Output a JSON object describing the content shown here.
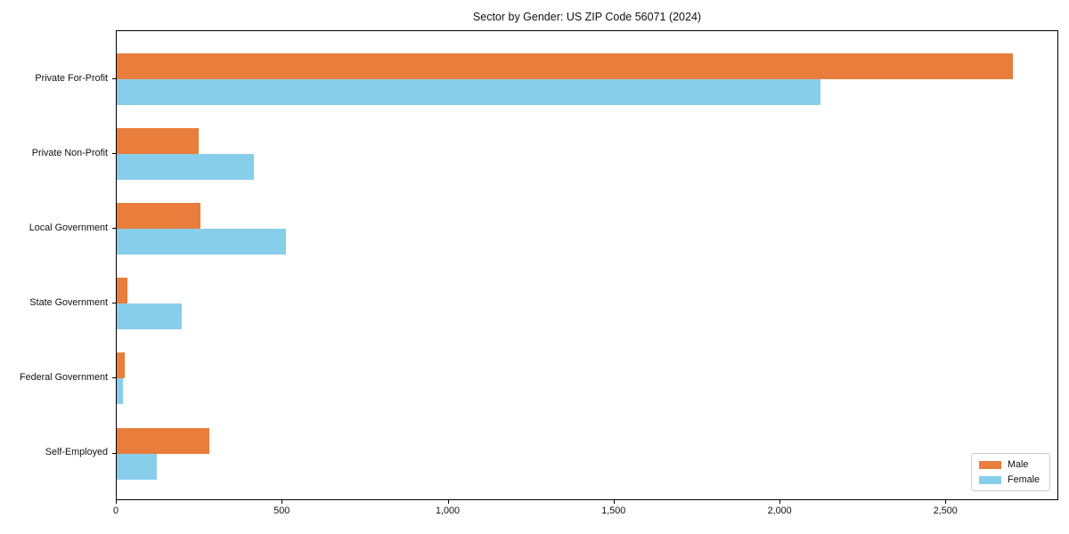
{
  "chart_data": {
    "type": "bar",
    "orientation": "horizontal",
    "title": "Sector by Gender: US ZIP Code 56071 (2024)",
    "categories": [
      "Private For-Profit",
      "Private Non-Profit",
      "Local Government",
      "State Government",
      "Federal Government",
      "Self-Employed"
    ],
    "series": [
      {
        "name": "Male",
        "color": "#e87d3c",
        "values": [
          2700,
          248,
          251,
          31,
          25,
          278
        ]
      },
      {
        "name": "Female",
        "color": "#87ceeb",
        "values": [
          2120,
          414,
          509,
          197,
          18,
          120
        ]
      }
    ],
    "xlim": [
      0,
      2840
    ],
    "xticks": [
      {
        "value": 0,
        "label": "0"
      },
      {
        "value": 500,
        "label": "500"
      },
      {
        "value": 1000,
        "label": "1,000"
      },
      {
        "value": 1500,
        "label": "1,500"
      },
      {
        "value": 2000,
        "label": "2,000"
      },
      {
        "value": 2500,
        "label": "2,500"
      }
    ],
    "grid": false,
    "legend": {
      "position": "lower-right",
      "entries": [
        "Male",
        "Female"
      ]
    }
  }
}
